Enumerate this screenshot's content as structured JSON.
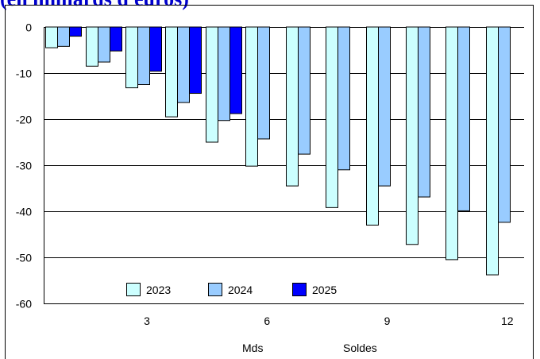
{
  "chart_data": {
    "type": "bar",
    "title": "(en milliards d'euros)",
    "x": [
      1,
      2,
      3,
      4,
      5,
      6,
      7,
      8,
      9,
      10,
      11,
      12
    ],
    "x_tick_labels": [
      "3",
      "6",
      "9",
      "12"
    ],
    "x_tick_values": [
      3,
      6,
      9,
      12
    ],
    "ylim": [
      -60,
      0
    ],
    "y_ticks": [
      0,
      -10,
      -20,
      -30,
      -40,
      -50,
      -60
    ],
    "grid": true,
    "legend_position": "bottom-left",
    "series": [
      {
        "name": "2023",
        "color": "#ccffff",
        "values": [
          -4.5,
          -8.5,
          -13.2,
          -19.5,
          -25,
          -30.2,
          -34.5,
          -39.2,
          -43,
          -47.2,
          -50.5,
          -53.8
        ]
      },
      {
        "name": "2024",
        "color": "#99ccff",
        "values": [
          -4.2,
          -7.6,
          -12.5,
          -16.4,
          -20.3,
          -24.3,
          -27.6,
          -31,
          -34.5,
          -36.9,
          -39.9,
          -42.4
        ]
      },
      {
        "name": "2025",
        "color": "#0000ff",
        "values": [
          -2,
          -5.2,
          -9.6,
          -14.4,
          -18.8,
          null,
          null,
          null,
          null,
          null,
          null,
          null
        ]
      }
    ],
    "footer_labels": [
      "Mds",
      "Soldes"
    ]
  }
}
